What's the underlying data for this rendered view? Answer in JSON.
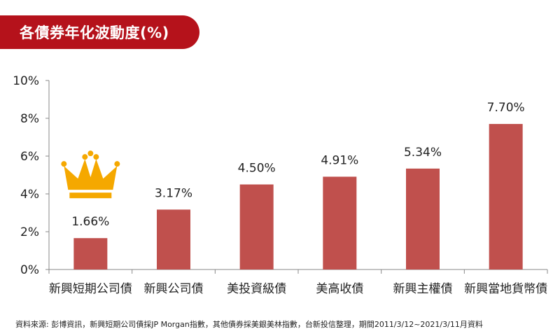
{
  "title": "各債券年化波動度(%)",
  "source_note": "資料來源: 彭博資訊，新興短期公司債採JP Morgan指數，其他債券採美銀美林指數，台新投信整理，期間2011/3/12~2021/3/11月資料",
  "icon": "crown-icon",
  "colors": {
    "bar": "#c0504d",
    "banner": "#b5121b",
    "crown": "#f5a800"
  },
  "chart_data": {
    "type": "bar",
    "categories": [
      "新興短期公司債",
      "新興公司債",
      "美投資級債",
      "美高收債",
      "新興主權債",
      "新興當地貨幣債"
    ],
    "values": [
      1.66,
      3.17,
      4.5,
      4.91,
      5.34,
      7.7
    ],
    "data_labels": [
      "1.66%",
      "3.17%",
      "4.50%",
      "4.91%",
      "5.34%",
      "7.70%"
    ],
    "y_ticks": [
      "0%",
      "2%",
      "4%",
      "6%",
      "8%",
      "10%"
    ],
    "ylim": [
      0,
      10
    ],
    "grid": false,
    "legend": "none",
    "highlight_category": "新興短期公司債"
  }
}
